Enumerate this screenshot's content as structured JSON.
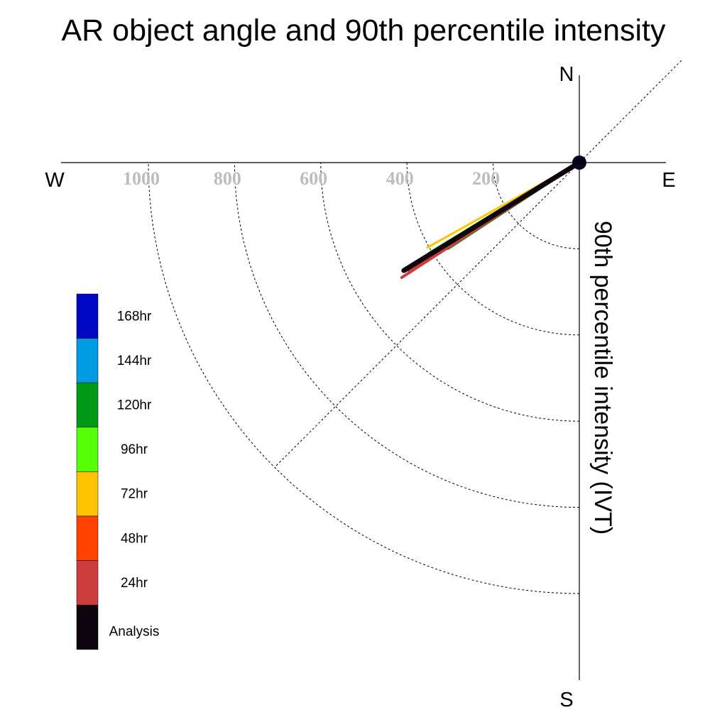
{
  "chart_data": {
    "type": "polar-vector",
    "title": "AR object angle and 90th percentile intensity",
    "ylabel": "90th percentile intensity (IVT)",
    "compass": {
      "north": "N",
      "south": "S",
      "east": "E",
      "west": "W"
    },
    "radial_ticks": [
      200,
      400,
      600,
      800,
      1000
    ],
    "radial_tick_labels": [
      "200",
      "400",
      "600",
      "800",
      "1000"
    ],
    "rlim": [
      0,
      1200
    ],
    "angle_unit": "degrees clockwise from north",
    "legend": [
      {
        "label": "168hr",
        "color": "#0008c4"
      },
      {
        "label": "144hr",
        "color": "#009be0"
      },
      {
        "label": "120hr",
        "color": "#009a16"
      },
      {
        "label": "96hr",
        "color": "#57ff08"
      },
      {
        "label": "72hr",
        "color": "#ffc400"
      },
      {
        "label": "48hr",
        "color": "#ff4200"
      },
      {
        "label": "24hr",
        "color": "#cc3d3d"
      },
      {
        "label": "Analysis",
        "color": "#0d040d"
      }
    ],
    "series": [
      {
        "name": "72hr",
        "angle": 240.8,
        "intensity": 404,
        "color": "#ffc400",
        "width": 3
      },
      {
        "name": "96hr",
        "angle": 238.7,
        "intensity": 405,
        "color": "#57ff08",
        "width": 6
      },
      {
        "name": "120hr",
        "angle": 236.8,
        "intensity": 364,
        "color": "#009a16",
        "width": 4
      },
      {
        "name": "48hr",
        "angle": 237.8,
        "intensity": 469,
        "color": "#ff4200",
        "width": 4
      },
      {
        "name": "24hr",
        "angle": 237.1,
        "intensity": 491,
        "color": "#cc3d3d",
        "width": 4
      },
      {
        "name": "Analysis",
        "angle": 238.4,
        "intensity": 478,
        "color": "#0d040d",
        "width": 7
      }
    ]
  }
}
